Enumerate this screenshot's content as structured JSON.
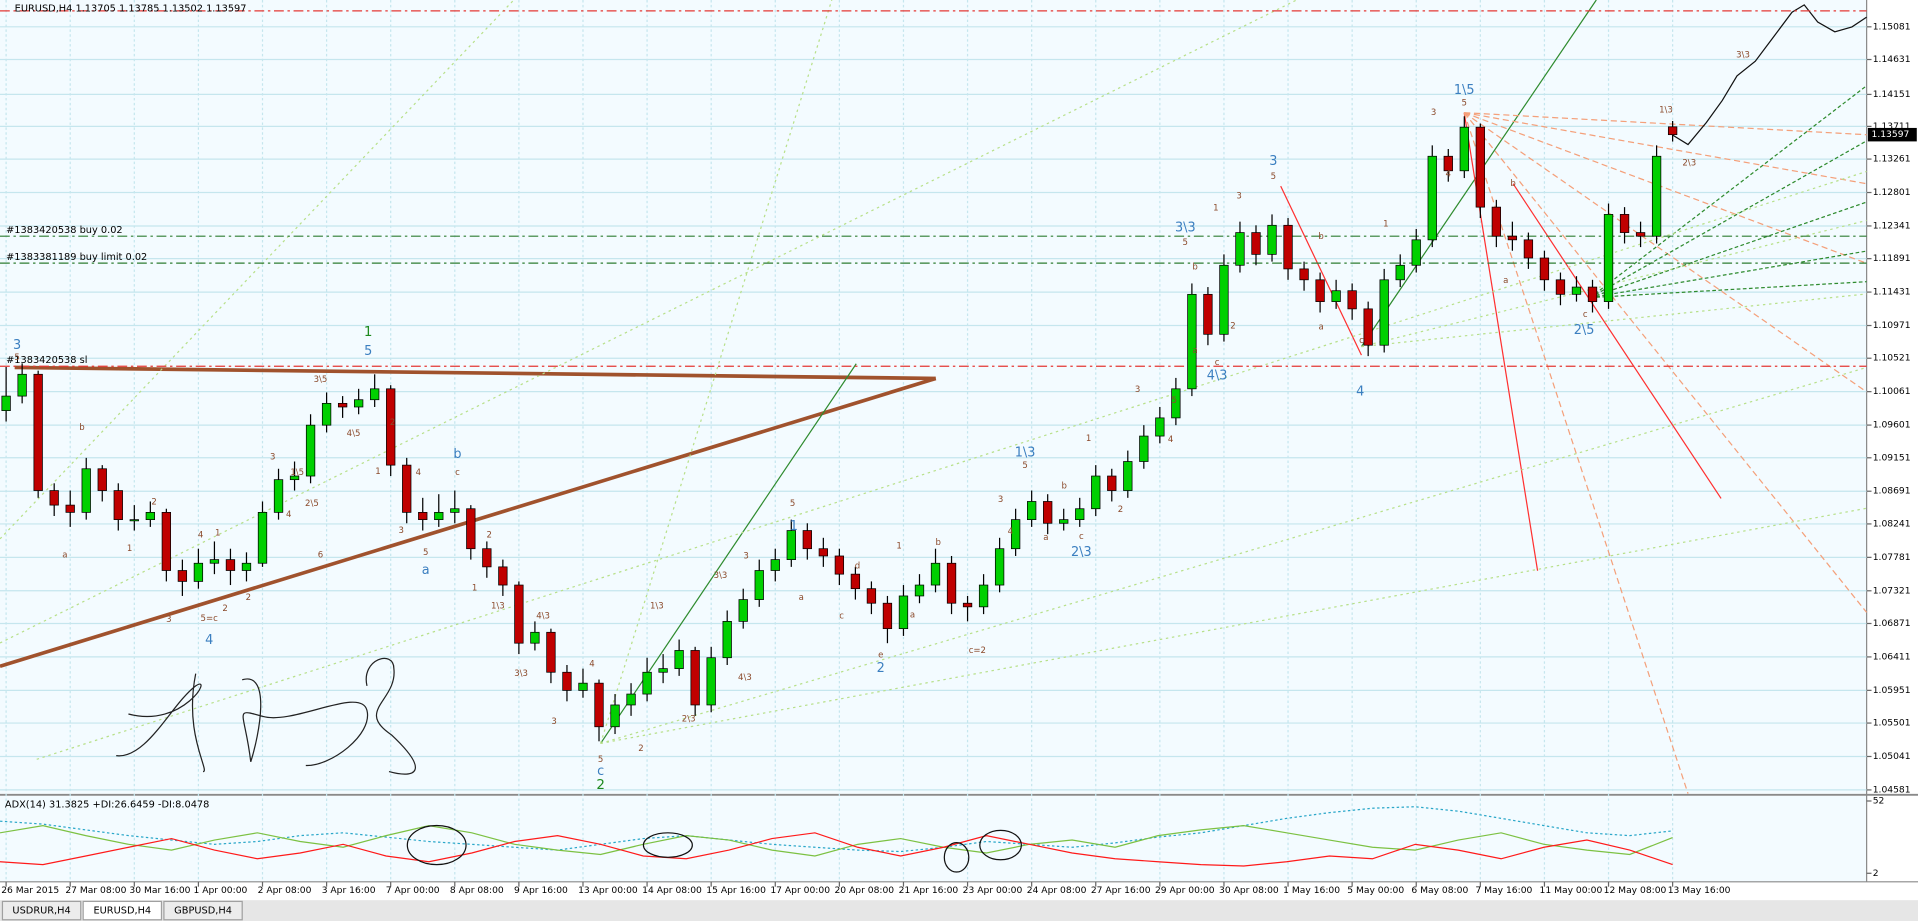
{
  "chart_data": [
    {
      "type": "candlestick",
      "title": "EURUSD,H4  1.13705 1.13785 1.13502 1.13597",
      "x_labels": [
        "26 Mar 2015",
        "27 Mar 08:00",
        "30 Mar 16:00",
        "1 Apr 00:00",
        "2 Apr 08:00",
        "3 Apr 16:00",
        "7 Apr 00:00",
        "8 Apr 08:00",
        "9 Apr 16:00",
        "13 Apr 00:00",
        "14 Apr 08:00",
        "15 Apr 16:00",
        "17 Apr 00:00",
        "20 Apr 08:00",
        "21 Apr 16:00",
        "23 Apr 00:00",
        "24 Apr 08:00",
        "27 Apr 16:00",
        "29 Apr 00:00",
        "30 Apr 08:00",
        "1 May 16:00",
        "5 May 00:00",
        "6 May 08:00",
        "7 May 16:00",
        "11 May 00:00",
        "12 May 08:00",
        "13 May 16:00"
      ],
      "ohlc": [
        [
          1.098,
          1.104,
          1.0965,
          1.1
        ],
        [
          1.1,
          1.1045,
          1.099,
          1.103
        ],
        [
          1.103,
          1.1035,
          1.086,
          1.087
        ],
        [
          1.087,
          1.088,
          1.0835,
          1.085
        ],
        [
          1.085,
          1.087,
          1.082,
          1.084
        ],
        [
          1.084,
          1.0915,
          1.083,
          1.09
        ],
        [
          1.09,
          1.0905,
          1.0855,
          1.087
        ],
        [
          1.087,
          1.088,
          1.0815,
          1.083
        ],
        [
          1.083,
          1.085,
          1.0815,
          1.083
        ],
        [
          1.083,
          1.0855,
          1.082,
          1.084
        ],
        [
          1.084,
          1.0845,
          1.0745,
          1.076
        ],
        [
          1.076,
          1.0775,
          1.0725,
          1.0745
        ],
        [
          1.0745,
          1.079,
          1.0735,
          1.077
        ],
        [
          1.077,
          1.08,
          1.0755,
          1.0775
        ],
        [
          1.0775,
          1.079,
          1.074,
          1.076
        ],
        [
          1.076,
          1.0785,
          1.0745,
          1.077
        ],
        [
          1.077,
          1.0855,
          1.0765,
          1.084
        ],
        [
          1.084,
          1.09,
          1.083,
          1.0885
        ],
        [
          1.0885,
          1.091,
          1.087,
          1.089
        ],
        [
          1.089,
          1.0975,
          1.088,
          1.096
        ],
        [
          1.096,
          1.1005,
          1.095,
          1.099
        ],
        [
          1.099,
          1.1,
          1.097,
          1.0985
        ],
        [
          1.0985,
          1.101,
          1.0975,
          1.0995
        ],
        [
          1.0995,
          1.103,
          1.0985,
          1.101
        ],
        [
          1.101,
          1.1015,
          1.089,
          1.0905
        ],
        [
          1.0905,
          1.0915,
          1.0825,
          1.084
        ],
        [
          1.084,
          1.086,
          1.0815,
          1.083
        ],
        [
          1.083,
          1.0865,
          1.082,
          1.084
        ],
        [
          1.084,
          1.087,
          1.0825,
          1.0845
        ],
        [
          1.0845,
          1.085,
          1.0775,
          1.079
        ],
        [
          1.079,
          1.08,
          1.075,
          1.0765
        ],
        [
          1.0765,
          1.0775,
          1.0725,
          1.074
        ],
        [
          1.074,
          1.0745,
          1.0645,
          1.066
        ],
        [
          1.066,
          1.069,
          1.065,
          1.0675
        ],
        [
          1.0675,
          1.068,
          1.0605,
          1.062
        ],
        [
          1.062,
          1.063,
          1.058,
          1.0595
        ],
        [
          1.0595,
          1.0625,
          1.0585,
          1.0605
        ],
        [
          1.0605,
          1.061,
          1.0525,
          1.0545
        ],
        [
          1.0545,
          1.059,
          1.0535,
          1.0575
        ],
        [
          1.0575,
          1.0605,
          1.056,
          1.059
        ],
        [
          1.059,
          1.064,
          1.058,
          1.062
        ],
        [
          1.062,
          1.0645,
          1.0605,
          1.0625
        ],
        [
          1.0625,
          1.0665,
          1.0615,
          1.065
        ],
        [
          1.065,
          1.0655,
          1.056,
          1.0575
        ],
        [
          1.0575,
          1.0655,
          1.0565,
          1.064
        ],
        [
          1.064,
          1.0705,
          1.063,
          1.069
        ],
        [
          1.069,
          1.0735,
          1.068,
          1.072
        ],
        [
          1.072,
          1.0775,
          1.071,
          1.076
        ],
        [
          1.076,
          1.079,
          1.0745,
          1.0775
        ],
        [
          1.0775,
          1.083,
          1.0765,
          1.0815
        ],
        [
          1.0815,
          1.0825,
          1.0775,
          1.079
        ],
        [
          1.079,
          1.0805,
          1.0765,
          1.078
        ],
        [
          1.078,
          1.079,
          1.074,
          1.0755
        ],
        [
          1.0755,
          1.0765,
          1.072,
          1.0735
        ],
        [
          1.0735,
          1.0745,
          1.07,
          1.0715
        ],
        [
          1.0715,
          1.0725,
          1.066,
          1.068
        ],
        [
          1.068,
          1.074,
          1.067,
          1.0725
        ],
        [
          1.0725,
          1.0755,
          1.0715,
          1.074
        ],
        [
          1.074,
          1.079,
          1.073,
          1.077
        ],
        [
          1.077,
          1.078,
          1.07,
          1.0715
        ],
        [
          1.0715,
          1.0725,
          1.069,
          1.071
        ],
        [
          1.071,
          1.0755,
          1.07,
          1.074
        ],
        [
          1.074,
          1.0805,
          1.073,
          1.079
        ],
        [
          1.079,
          1.0845,
          1.078,
          1.083
        ],
        [
          1.083,
          1.087,
          1.082,
          1.0855
        ],
        [
          1.0855,
          1.0865,
          1.081,
          1.0825
        ],
        [
          1.0825,
          1.0845,
          1.0815,
          1.083
        ],
        [
          1.083,
          1.086,
          1.082,
          1.0845
        ],
        [
          1.0845,
          1.0905,
          1.0835,
          1.089
        ],
        [
          1.089,
          1.09,
          1.0855,
          1.087
        ],
        [
          1.087,
          1.0925,
          1.086,
          1.091
        ],
        [
          1.091,
          1.096,
          1.09,
          1.0945
        ],
        [
          1.0945,
          1.0985,
          1.0935,
          1.097
        ],
        [
          1.097,
          1.1025,
          1.096,
          1.101
        ],
        [
          1.101,
          1.1155,
          1.1,
          1.114
        ],
        [
          1.114,
          1.115,
          1.107,
          1.1085
        ],
        [
          1.1085,
          1.1195,
          1.1075,
          1.118
        ],
        [
          1.118,
          1.124,
          1.117,
          1.1225
        ],
        [
          1.1225,
          1.1235,
          1.118,
          1.1195
        ],
        [
          1.1195,
          1.125,
          1.1185,
          1.1235
        ],
        [
          1.1235,
          1.1245,
          1.116,
          1.1175
        ],
        [
          1.1175,
          1.1185,
          1.1145,
          1.116
        ],
        [
          1.116,
          1.117,
          1.1115,
          1.113
        ],
        [
          1.113,
          1.116,
          1.112,
          1.1145
        ],
        [
          1.1145,
          1.1155,
          1.1105,
          1.112
        ],
        [
          1.112,
          1.113,
          1.1055,
          1.107
        ],
        [
          1.107,
          1.1175,
          1.106,
          1.116
        ],
        [
          1.116,
          1.1195,
          1.115,
          1.118
        ],
        [
          1.118,
          1.123,
          1.117,
          1.1215
        ],
        [
          1.1215,
          1.1345,
          1.1205,
          1.133
        ],
        [
          1.133,
          1.134,
          1.1295,
          1.131
        ],
        [
          1.131,
          1.1385,
          1.13,
          1.137
        ],
        [
          1.137,
          1.1375,
          1.1245,
          1.126
        ],
        [
          1.126,
          1.127,
          1.1205,
          1.122
        ],
        [
          1.122,
          1.124,
          1.12,
          1.1215
        ],
        [
          1.1215,
          1.1225,
          1.1175,
          1.119
        ],
        [
          1.119,
          1.12,
          1.1145,
          1.116
        ],
        [
          1.116,
          1.117,
          1.1125,
          1.114
        ],
        [
          1.114,
          1.1165,
          1.113,
          1.115
        ],
        [
          1.115,
          1.116,
          1.1115,
          1.113
        ],
        [
          1.113,
          1.1265,
          1.112,
          1.125
        ],
        [
          1.125,
          1.126,
          1.121,
          1.1225
        ],
        [
          1.1225,
          1.124,
          1.1205,
          1.122
        ],
        [
          1.122,
          1.1345,
          1.121,
          1.133
        ],
        [
          1.13705,
          1.13785,
          1.13502,
          1.13597
        ]
      ],
      "ylim": [
        1.0453,
        1.1545
      ],
      "yticks": [
        1.15081,
        1.14631,
        1.14151,
        1.13711,
        1.13261,
        1.12801,
        1.12341,
        1.11891,
        1.11431,
        1.10971,
        1.10521,
        1.10061,
        1.09601,
        1.09151,
        1.08691,
        1.08241,
        1.07781,
        1.07321,
        1.06871,
        1.06411,
        1.05951,
        1.05501,
        1.05041,
        1.04581
      ],
      "grid": true,
      "bull_color": "#00d000",
      "bear_color": "#c00000",
      "levels": [
        {
          "label": "#1383420538 buy 0.02",
          "value": 1.122,
          "color": "#2e7d32"
        },
        {
          "label": "#1383381189 buy limit 0.02",
          "value": 1.1183,
          "color": "#2e7d32"
        },
        {
          "label": "#1383420538 sl",
          "value": 1.1041,
          "color": "#e53935"
        },
        {
          "value": 1.153,
          "color": "#e53935"
        }
      ],
      "wave_labels": [
        "3",
        "5",
        "1",
        "5",
        "3\\5",
        "4\\5",
        "1\\5",
        "2\\5",
        "b",
        "a",
        "2",
        "1",
        "4",
        "1",
        "3",
        "5=c",
        "2",
        "2",
        "4",
        "3",
        "4",
        "6",
        "2",
        "1",
        "4",
        "b",
        "c",
        "3",
        "5",
        "a",
        "2",
        "1",
        "1\\3",
        "4\\3",
        "3\\3",
        "4",
        "3",
        "5",
        "c",
        "2",
        "2",
        "1\\3",
        "2\\3",
        "3\\3",
        "4\\3",
        "3",
        "1",
        "5",
        "a",
        "c",
        "d",
        "1",
        "e",
        "2",
        "a",
        "b",
        "c=2",
        "3",
        "4",
        "1\\3",
        "5",
        "a",
        "b",
        "c",
        "2\\3",
        "2",
        "1",
        "3",
        "4",
        "5",
        "3\\3",
        "5",
        "b",
        "a",
        "c",
        "4\\3",
        "1",
        "2",
        "3",
        "3",
        "5",
        "b",
        "a",
        "c",
        "4",
        "1",
        "3",
        "1\\5",
        "5",
        "4",
        "b",
        "a",
        "c",
        "2\\5",
        "1\\3",
        "2\\3",
        "3\\3"
      ]
    },
    {
      "type": "line",
      "title": "ADX(14) 31.3825 +DI:26.6459 -DI:8.0478",
      "ylim": [
        -3.9,
        55.4
      ],
      "yticks": [
        52,
        2
      ],
      "series": [
        {
          "color": "#2aa7c9",
          "values": [
            38,
            36,
            32,
            28,
            25,
            22,
            24,
            28,
            30,
            27,
            24,
            22,
            20,
            18,
            22,
            26,
            28,
            25,
            22,
            20,
            18,
            17,
            20,
            24,
            22,
            20,
            23,
            27,
            30,
            35,
            40,
            44,
            47,
            48,
            45,
            40,
            35,
            30,
            28,
            31.3825
          ]
        },
        {
          "color": "#7cc142",
          "values": [
            30,
            35,
            28,
            22,
            18,
            25,
            30,
            24,
            20,
            28,
            35,
            30,
            22,
            18,
            15,
            22,
            28,
            25,
            18,
            14,
            22,
            26,
            20,
            16,
            22,
            25,
            20,
            28,
            32,
            35,
            30,
            25,
            20,
            18,
            25,
            30,
            22,
            18,
            15,
            26.6459
          ]
        },
        {
          "color": "#ff1a1a",
          "values": [
            10,
            8,
            14,
            20,
            26,
            18,
            12,
            16,
            22,
            14,
            10,
            16,
            24,
            28,
            22,
            14,
            12,
            18,
            26,
            30,
            20,
            14,
            20,
            28,
            22,
            16,
            12,
            10,
            8,
            7,
            10,
            14,
            12,
            22,
            18,
            12,
            20,
            25,
            18,
            8.0478
          ]
        }
      ]
    }
  ],
  "tabs": [
    "USDRUR,H4",
    "EURUSD,H4",
    "GBPUSD,H4"
  ]
}
